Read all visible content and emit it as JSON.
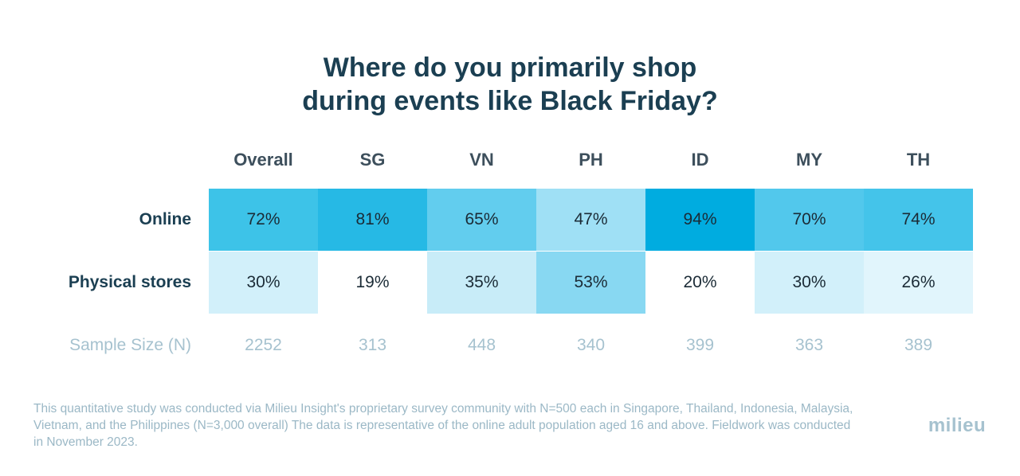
{
  "chart_data": {
    "type": "heatmap",
    "title_lines": [
      "Where do you primarily shop",
      "during events like Black Friday?"
    ],
    "columns": [
      "Overall",
      "SG",
      "VN",
      "PH",
      "ID",
      "MY",
      "TH"
    ],
    "rows": [
      {
        "label": "Online",
        "values": [
          72,
          81,
          65,
          47,
          94,
          70,
          74
        ],
        "display": [
          "72%",
          "81%",
          "65%",
          "47%",
          "94%",
          "70%",
          "74%"
        ],
        "colors": [
          "#3dc3e8",
          "#26b9e5",
          "#62cdee",
          "#9fe0f5",
          "#00ace0",
          "#52c8ec",
          "#44c4ea"
        ]
      },
      {
        "label": "Physical stores",
        "values": [
          30,
          19,
          35,
          53,
          20,
          30,
          26
        ],
        "display": [
          "30%",
          "19%",
          "35%",
          "53%",
          "20%",
          "30%",
          "26%"
        ],
        "colors": [
          "#d2f0fa",
          "#ffffff",
          "#c8ecf8",
          "#88d8f2",
          "#ffffff",
          "#d2f0fa",
          "#e1f5fc"
        ]
      }
    ],
    "sample_size": {
      "label": "Sample Size (N)",
      "values": [
        2252,
        313,
        448,
        340,
        399,
        363,
        389
      ]
    }
  },
  "footnote": "This quantitative study was conducted via Milieu Insight's proprietary survey community with N=500 each in Singapore, Thailand, Indonesia, Malaysia, Vietnam, and the Philippines (N=3,000 overall) The data is representative of the online adult population aged 16 and above. Fieldwork was conducted in November 2023.",
  "logo_text": "milieu",
  "colors": {
    "title": "#1b3f52",
    "header": "#3d4f5c",
    "muted": "#a6c2cf"
  }
}
